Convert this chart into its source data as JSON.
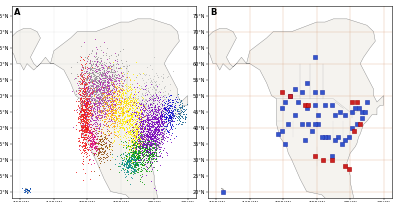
{
  "title_A": "A",
  "title_B": "B",
  "xlim": [
    -165,
    -55
  ],
  "ylim": [
    18,
    78
  ],
  "xticks": [
    -160,
    -140,
    -120,
    -100,
    -80,
    -60
  ],
  "yticks": [
    20,
    25,
    30,
    35,
    40,
    45,
    50,
    55,
    60,
    65,
    70,
    75
  ],
  "background_color": "#ffffff",
  "clusters_A": [
    {
      "color": "#EE1111",
      "lon_mean": -121.5,
      "lat_mean": 44,
      "lon_std": 2.0,
      "lat_std": 7,
      "n": 700
    },
    {
      "color": "#DD0077",
      "lon_mean": -117,
      "lat_mean": 36,
      "lon_std": 1.5,
      "lat_std": 2.5,
      "n": 120
    },
    {
      "color": "#AA22AA",
      "lon_mean": -114,
      "lat_mean": 49,
      "lon_std": 5,
      "lat_std": 6,
      "n": 600
    },
    {
      "color": "#AA22AA",
      "lon_mean": -106,
      "lat_mean": 52,
      "lon_std": 4,
      "lat_std": 4,
      "n": 250
    },
    {
      "color": "#FFAA00",
      "lon_mean": -105,
      "lat_mean": 46,
      "lon_std": 5,
      "lat_std": 4,
      "n": 350
    },
    {
      "color": "#FFEE00",
      "lon_mean": -96,
      "lat_mean": 45,
      "lon_std": 5,
      "lat_std": 5,
      "n": 500
    },
    {
      "color": "#FFEE00",
      "lon_mean": -91,
      "lat_mean": 38,
      "lon_std": 3,
      "lat_std": 4,
      "n": 250
    },
    {
      "color": "#009900",
      "lon_mean": -90,
      "lat_mean": 31,
      "lon_std": 4,
      "lat_std": 3,
      "n": 350
    },
    {
      "color": "#009900",
      "lon_mean": -83,
      "lat_mean": 33,
      "lon_std": 3,
      "lat_std": 2,
      "n": 200
    },
    {
      "color": "#7700BB",
      "lon_mean": -84,
      "lat_mean": 39,
      "lon_std": 4,
      "lat_std": 5,
      "n": 700
    },
    {
      "color": "#7700BB",
      "lon_mean": -78,
      "lat_mean": 41,
      "lon_std": 3,
      "lat_std": 4,
      "n": 350
    },
    {
      "color": "#0000CC",
      "lon_mean": -71,
      "lat_mean": 44,
      "lon_std": 2.5,
      "lat_std": 3,
      "n": 200
    },
    {
      "color": "#005588",
      "lon_mean": -64,
      "lat_mean": 45,
      "lon_std": 2,
      "lat_std": 2,
      "n": 80
    },
    {
      "color": "#999999",
      "lon_mean": -116,
      "lat_mean": 54,
      "lon_std": 5,
      "lat_std": 5,
      "n": 400
    },
    {
      "color": "#999999",
      "lon_mean": -106,
      "lat_mean": 57,
      "lon_std": 6,
      "lat_std": 3,
      "n": 150
    },
    {
      "color": "#BBBBBB",
      "lon_mean": -80,
      "lat_mean": 51,
      "lon_std": 5,
      "lat_std": 4,
      "n": 180
    },
    {
      "color": "#884400",
      "lon_mean": -111,
      "lat_mean": 34,
      "lon_std": 3,
      "lat_std": 3,
      "n": 150
    },
    {
      "color": "#0044AA",
      "lon_mean": -156,
      "lat_mean": 20.5,
      "lon_std": 1,
      "lat_std": 0.5,
      "n": 30
    },
    {
      "color": "#008888",
      "lon_mean": -95,
      "lat_mean": 29,
      "lon_std": 3,
      "lat_std": 2,
      "n": 180
    }
  ],
  "points_B_blue": [
    [
      -156,
      20
    ],
    [
      -121,
      46
    ],
    [
      -119,
      48
    ],
    [
      -116,
      50
    ],
    [
      -113,
      52
    ],
    [
      -109,
      51
    ],
    [
      -111,
      48
    ],
    [
      -106,
      54
    ],
    [
      -101,
      62
    ],
    [
      -101,
      51
    ],
    [
      -97,
      51
    ],
    [
      -101,
      47
    ],
    [
      -99,
      44
    ],
    [
      -95,
      47
    ],
    [
      -91,
      47
    ],
    [
      -89,
      44
    ],
    [
      -86,
      45
    ],
    [
      -83,
      44
    ],
    [
      -79,
      45
    ],
    [
      -77,
      46
    ],
    [
      -75,
      46
    ],
    [
      -73,
      45
    ],
    [
      -73,
      43
    ],
    [
      -79,
      40
    ],
    [
      -81,
      37
    ],
    [
      -83,
      36
    ],
    [
      -85,
      35
    ],
    [
      -87,
      37
    ],
    [
      -89,
      36
    ],
    [
      -93,
      37
    ],
    [
      -95,
      37
    ],
    [
      -97,
      37
    ],
    [
      -99,
      41
    ],
    [
      -101,
      41
    ],
    [
      -103,
      39
    ],
    [
      -105,
      41
    ],
    [
      -107,
      36
    ],
    [
      -109,
      41
    ],
    [
      -113,
      44
    ],
    [
      -117,
      41
    ],
    [
      -119,
      35
    ],
    [
      -121,
      39
    ],
    [
      -123,
      38
    ],
    [
      -106,
      46
    ],
    [
      -91,
      31
    ],
    [
      -76,
      41
    ],
    [
      -71,
      45
    ],
    [
      -70,
      48
    ]
  ],
  "points_B_red": [
    [
      -121,
      51
    ],
    [
      -116,
      50
    ],
    [
      -107,
      47
    ],
    [
      -105,
      47
    ],
    [
      -101,
      31
    ],
    [
      -96,
      30
    ],
    [
      -91,
      30
    ],
    [
      -83,
      28
    ],
    [
      -81,
      27
    ],
    [
      -79,
      48
    ],
    [
      -76,
      48
    ],
    [
      -78,
      39
    ],
    [
      -74,
      41
    ]
  ],
  "marker_size_A": 0.4,
  "marker_size_B": 5,
  "grid_color_B": "#cc9966",
  "land_color": "#f5f3ef",
  "border_color": "#999999",
  "coast_color": "#888888"
}
